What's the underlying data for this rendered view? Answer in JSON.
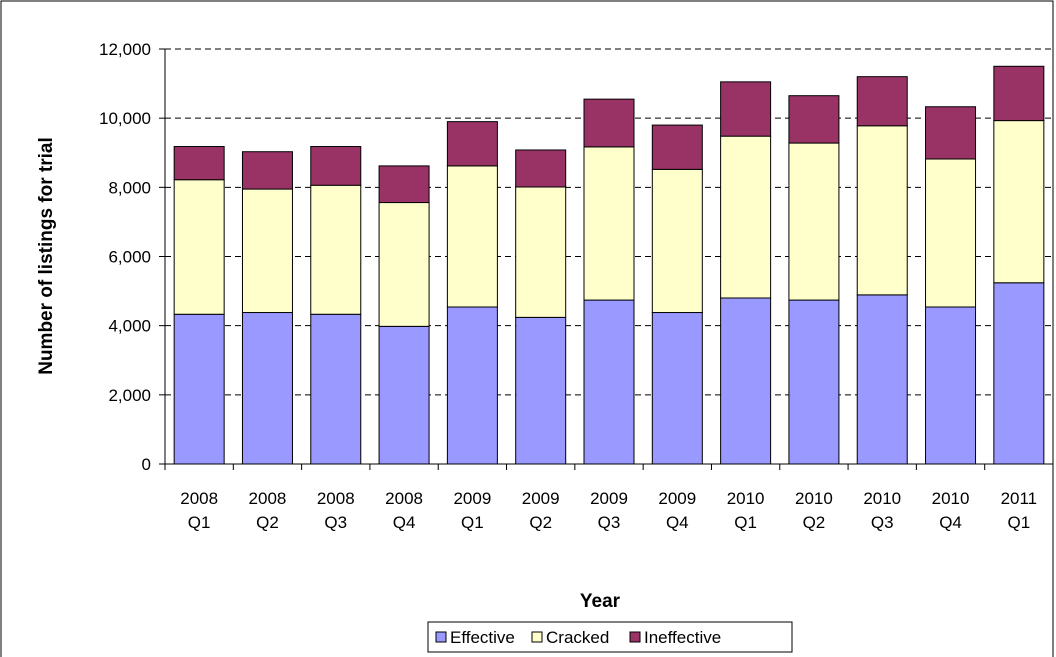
{
  "chart_data": {
    "type": "stacked-bar",
    "x_label": "Year",
    "y_label": "Number of listings for trial",
    "categories": [
      "2008 Q1",
      "2008 Q2",
      "2008 Q3",
      "2008 Q4",
      "2009 Q1",
      "2009 Q2",
      "2009 Q3",
      "2009 Q4",
      "2010 Q1",
      "2010 Q2",
      "2010 Q3",
      "2010 Q4",
      "2011 Q1"
    ],
    "series": [
      {
        "name": "Effective",
        "color": "#9999ff",
        "values": [
          4330,
          4380,
          4330,
          3980,
          4540,
          4240,
          4740,
          4380,
          4800,
          4740,
          4890,
          4540,
          5240
        ]
      },
      {
        "name": "Cracked",
        "color": "#ffffcc",
        "values": [
          3890,
          3570,
          3730,
          3580,
          4080,
          3770,
          4430,
          4140,
          4680,
          4540,
          4890,
          4280,
          4690
        ]
      },
      {
        "name": "Ineffective",
        "color": "#993366",
        "values": [
          960,
          1080,
          1120,
          1060,
          1280,
          1070,
          1380,
          1280,
          1570,
          1370,
          1420,
          1510,
          1570
        ]
      }
    ],
    "ylim": [
      0,
      12000
    ],
    "yticks": [
      0,
      {
        "value": 2000,
        "label": "2,000"
      },
      {
        "value": 4000,
        "label": "4,000"
      },
      {
        "value": 6000,
        "label": "6,000"
      },
      {
        "value": 8000,
        "label": "8,000"
      },
      {
        "value": 10000,
        "label": "10,000"
      },
      {
        "value": 12000,
        "label": "12,000"
      }
    ],
    "grid": true,
    "legend": "bottom"
  }
}
